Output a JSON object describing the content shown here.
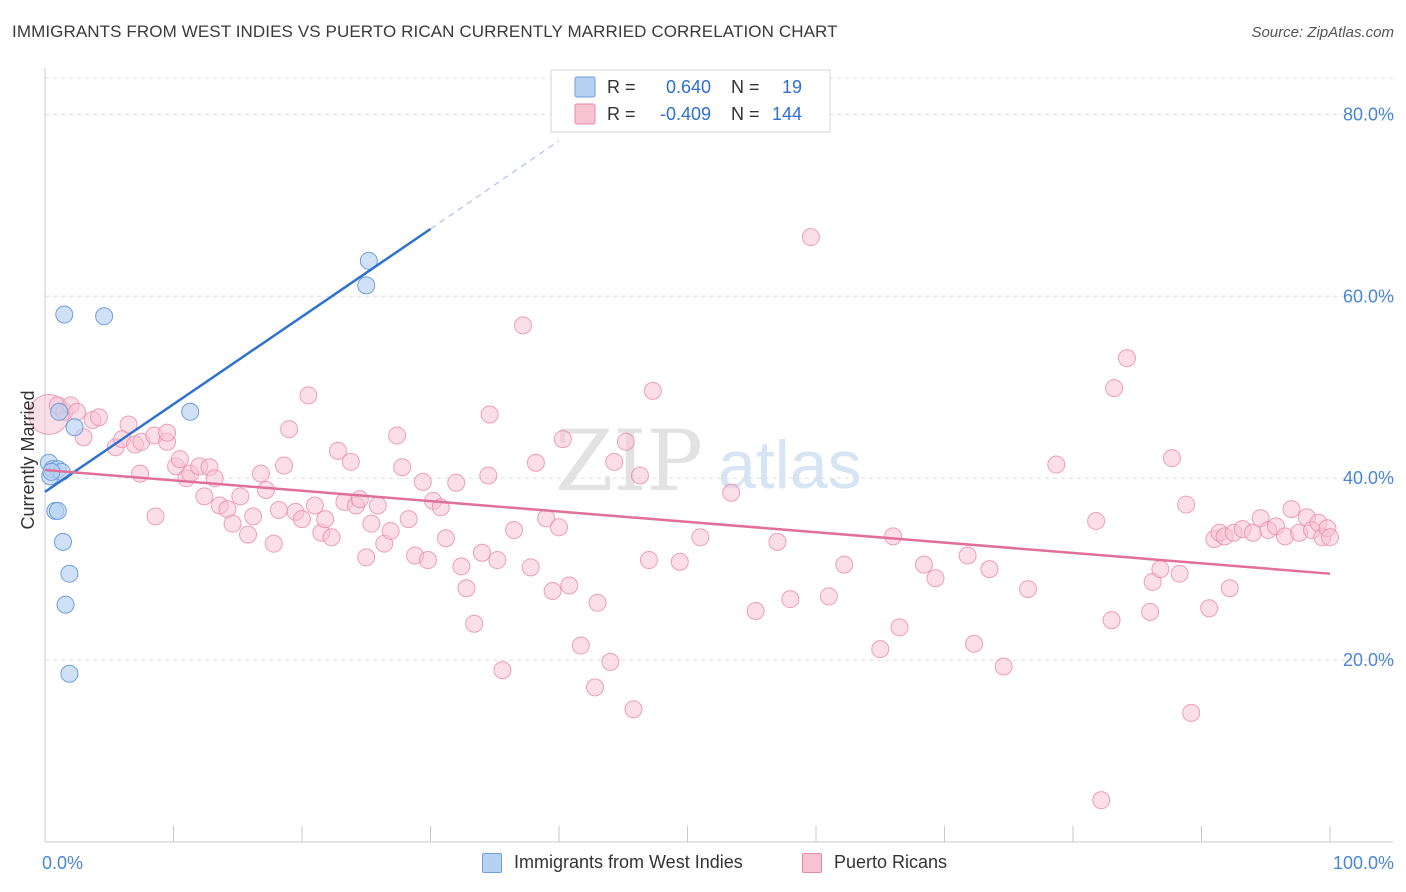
{
  "title": "IMMIGRANTS FROM WEST INDIES VS PUERTO RICAN CURRENTLY MARRIED CORRELATION CHART",
  "source": "Source: ZipAtlas.com",
  "watermark": {
    "zip": "ZIP",
    "atlas": "atlas"
  },
  "colors": {
    "blue_fill": "#b7d1f2",
    "blue_stroke": "#6f9fdc",
    "blue_line": "#2f72cf",
    "pink_fill": "#f7c3d3",
    "pink_stroke": "#e98aab",
    "pink_line": "#e0709a",
    "grid": "#dddddd",
    "tick_text": "#4a86d4"
  },
  "legend": {
    "rows": [
      {
        "r_label": "R =",
        "r_value": "0.640",
        "n_label": "N =",
        "n_value": "19"
      },
      {
        "r_label": "R =",
        "r_value": "-0.409",
        "n_label": "N =",
        "n_value": "144"
      }
    ]
  },
  "bottom_legend": [
    "Immigrants from West Indies",
    "Puerto Ricans"
  ],
  "chart_data": {
    "type": "scatter",
    "title": "IMMIGRANTS FROM WEST INDIES VS PUERTO RICAN CURRENTLY MARRIED CORRELATION CHART",
    "xlabel": "",
    "ylabel": "Currently Married",
    "xlim": [
      0,
      100
    ],
    "ylim": [
      0,
      84
    ],
    "x_tick_labels": [
      "0.0%",
      "100.0%"
    ],
    "y_ticks": [
      20,
      40,
      60,
      80
    ],
    "y_tick_labels": [
      "20.0%",
      "40.0%",
      "60.0%",
      "80.0%"
    ],
    "grid": true,
    "legend_position": "top-center",
    "series": [
      {
        "name": "Immigrants from West Indies",
        "color": "#b7d1f2",
        "r": 0.64,
        "n": 19,
        "trend": {
          "x0": 0,
          "y0": 38.5,
          "x1": 30,
          "y1": 67.4,
          "dash_to_x": 40,
          "dash_to_y": 77.1
        },
        "points": [
          {
            "x": 0.3,
            "y": 41.7
          },
          {
            "x": 0.4,
            "y": 40.2
          },
          {
            "x": 0.6,
            "y": 41.0
          },
          {
            "x": 0.8,
            "y": 36.4
          },
          {
            "x": 1.0,
            "y": 41.0
          },
          {
            "x": 1.0,
            "y": 36.4
          },
          {
            "x": 1.1,
            "y": 47.3
          },
          {
            "x": 1.3,
            "y": 40.7
          },
          {
            "x": 1.4,
            "y": 33.0
          },
          {
            "x": 1.5,
            "y": 58.0
          },
          {
            "x": 1.6,
            "y": 26.1
          },
          {
            "x": 1.9,
            "y": 29.5
          },
          {
            "x": 1.9,
            "y": 18.5
          },
          {
            "x": 2.3,
            "y": 45.6
          },
          {
            "x": 4.6,
            "y": 57.8
          },
          {
            "x": 11.3,
            "y": 47.3
          },
          {
            "x": 25.0,
            "y": 61.2
          },
          {
            "x": 25.2,
            "y": 63.9
          },
          {
            "x": 0.5,
            "y": 40.7
          }
        ]
      },
      {
        "name": "Puerto Ricans",
        "color": "#f7c3d3",
        "r": -0.409,
        "n": 144,
        "trend": {
          "x0": 0,
          "y0": 40.9,
          "x1": 100,
          "y1": 29.5
        },
        "points": [
          {
            "x": 0.3,
            "y": 47.0
          },
          {
            "x": 1.0,
            "y": 48.0
          },
          {
            "x": 1.5,
            "y": 47.3
          },
          {
            "x": 2.0,
            "y": 48.0
          },
          {
            "x": 2.5,
            "y": 47.3
          },
          {
            "x": 3.0,
            "y": 44.5
          },
          {
            "x": 3.7,
            "y": 46.4
          },
          {
            "x": 4.2,
            "y": 46.7
          },
          {
            "x": 5.5,
            "y": 43.4
          },
          {
            "x": 6.0,
            "y": 44.3
          },
          {
            "x": 6.5,
            "y": 45.9
          },
          {
            "x": 7.0,
            "y": 43.7
          },
          {
            "x": 7.5,
            "y": 44.0
          },
          {
            "x": 7.4,
            "y": 40.5
          },
          {
            "x": 8.6,
            "y": 35.8
          },
          {
            "x": 8.5,
            "y": 44.7
          },
          {
            "x": 9.5,
            "y": 44.0
          },
          {
            "x": 9.5,
            "y": 45.0
          },
          {
            "x": 10.2,
            "y": 41.3
          },
          {
            "x": 10.5,
            "y": 42.1
          },
          {
            "x": 11.0,
            "y": 40.0
          },
          {
            "x": 11.3,
            "y": 40.5
          },
          {
            "x": 12.0,
            "y": 41.3
          },
          {
            "x": 12.4,
            "y": 38.0
          },
          {
            "x": 12.8,
            "y": 41.2
          },
          {
            "x": 13.2,
            "y": 40.0
          },
          {
            "x": 13.6,
            "y": 37.0
          },
          {
            "x": 14.2,
            "y": 36.6
          },
          {
            "x": 14.6,
            "y": 35.0
          },
          {
            "x": 15.2,
            "y": 38.0
          },
          {
            "x": 15.8,
            "y": 33.8
          },
          {
            "x": 16.2,
            "y": 35.8
          },
          {
            "x": 16.8,
            "y": 40.5
          },
          {
            "x": 17.2,
            "y": 38.7
          },
          {
            "x": 17.8,
            "y": 32.8
          },
          {
            "x": 18.2,
            "y": 36.5
          },
          {
            "x": 18.6,
            "y": 41.4
          },
          {
            "x": 19.0,
            "y": 45.4
          },
          {
            "x": 19.5,
            "y": 36.3
          },
          {
            "x": 20.0,
            "y": 35.5
          },
          {
            "x": 20.5,
            "y": 49.1
          },
          {
            "x": 21.0,
            "y": 37.0
          },
          {
            "x": 21.5,
            "y": 34.0
          },
          {
            "x": 21.8,
            "y": 35.5
          },
          {
            "x": 22.3,
            "y": 33.5
          },
          {
            "x": 22.8,
            "y": 43.0
          },
          {
            "x": 23.3,
            "y": 37.4
          },
          {
            "x": 23.8,
            "y": 41.8
          },
          {
            "x": 24.2,
            "y": 37.0
          },
          {
            "x": 24.5,
            "y": 37.7
          },
          {
            "x": 25.0,
            "y": 31.3
          },
          {
            "x": 25.4,
            "y": 35.0
          },
          {
            "x": 25.9,
            "y": 37.0
          },
          {
            "x": 26.4,
            "y": 32.8
          },
          {
            "x": 26.9,
            "y": 34.2
          },
          {
            "x": 27.4,
            "y": 44.7
          },
          {
            "x": 27.8,
            "y": 41.2
          },
          {
            "x": 28.3,
            "y": 35.5
          },
          {
            "x": 28.8,
            "y": 31.5
          },
          {
            "x": 29.4,
            "y": 39.6
          },
          {
            "x": 29.8,
            "y": 31.0
          },
          {
            "x": 30.2,
            "y": 37.5
          },
          {
            "x": 30.8,
            "y": 36.8
          },
          {
            "x": 31.2,
            "y": 33.4
          },
          {
            "x": 32.0,
            "y": 39.5
          },
          {
            "x": 32.4,
            "y": 30.3
          },
          {
            "x": 32.8,
            "y": 27.9
          },
          {
            "x": 33.4,
            "y": 24.0
          },
          {
            "x": 34.0,
            "y": 31.8
          },
          {
            "x": 34.5,
            "y": 40.3
          },
          {
            "x": 34.6,
            "y": 47.0
          },
          {
            "x": 35.2,
            "y": 31.0
          },
          {
            "x": 35.6,
            "y": 18.9
          },
          {
            "x": 36.5,
            "y": 34.3
          },
          {
            "x": 37.2,
            "y": 56.8
          },
          {
            "x": 37.8,
            "y": 30.2
          },
          {
            "x": 38.2,
            "y": 41.7
          },
          {
            "x": 39.0,
            "y": 35.6
          },
          {
            "x": 39.5,
            "y": 27.6
          },
          {
            "x": 40.0,
            "y": 34.6
          },
          {
            "x": 40.3,
            "y": 44.3
          },
          {
            "x": 40.8,
            "y": 28.2
          },
          {
            "x": 41.7,
            "y": 21.6
          },
          {
            "x": 43.0,
            "y": 26.3
          },
          {
            "x": 42.8,
            "y": 17.0
          },
          {
            "x": 44.0,
            "y": 19.8
          },
          {
            "x": 44.3,
            "y": 41.8
          },
          {
            "x": 45.2,
            "y": 44.0
          },
          {
            "x": 46.3,
            "y": 40.3
          },
          {
            "x": 45.8,
            "y": 14.6
          },
          {
            "x": 47.3,
            "y": 49.6
          },
          {
            "x": 47.0,
            "y": 31.0
          },
          {
            "x": 49.4,
            "y": 30.8
          },
          {
            "x": 51.0,
            "y": 33.5
          },
          {
            "x": 53.4,
            "y": 38.4
          },
          {
            "x": 55.3,
            "y": 25.4
          },
          {
            "x": 57.0,
            "y": 33.0
          },
          {
            "x": 58.0,
            "y": 26.7
          },
          {
            "x": 59.6,
            "y": 66.5
          },
          {
            "x": 61.0,
            "y": 27.0
          },
          {
            "x": 62.2,
            "y": 30.5
          },
          {
            "x": 65.0,
            "y": 21.2
          },
          {
            "x": 66.0,
            "y": 33.6
          },
          {
            "x": 66.5,
            "y": 23.6
          },
          {
            "x": 68.4,
            "y": 30.5
          },
          {
            "x": 69.3,
            "y": 29.0
          },
          {
            "x": 71.8,
            "y": 31.5
          },
          {
            "x": 72.3,
            "y": 21.8
          },
          {
            "x": 73.5,
            "y": 30.0
          },
          {
            "x": 74.6,
            "y": 19.3
          },
          {
            "x": 76.5,
            "y": 27.8
          },
          {
            "x": 78.7,
            "y": 41.5
          },
          {
            "x": 81.8,
            "y": 35.3
          },
          {
            "x": 82.2,
            "y": 4.6
          },
          {
            "x": 83.0,
            "y": 24.4
          },
          {
            "x": 83.2,
            "y": 49.9
          },
          {
            "x": 84.2,
            "y": 53.2
          },
          {
            "x": 86.0,
            "y": 25.3
          },
          {
            "x": 86.2,
            "y": 28.6
          },
          {
            "x": 86.8,
            "y": 30.0
          },
          {
            "x": 87.7,
            "y": 42.2
          },
          {
            "x": 88.3,
            "y": 29.5
          },
          {
            "x": 88.8,
            "y": 37.1
          },
          {
            "x": 89.2,
            "y": 14.2
          },
          {
            "x": 90.6,
            "y": 25.7
          },
          {
            "x": 91.0,
            "y": 33.3
          },
          {
            "x": 91.4,
            "y": 34.0
          },
          {
            "x": 91.8,
            "y": 33.6
          },
          {
            "x": 92.2,
            "y": 27.9
          },
          {
            "x": 92.5,
            "y": 34.0
          },
          {
            "x": 93.2,
            "y": 34.4
          },
          {
            "x": 94.0,
            "y": 34.0
          },
          {
            "x": 94.6,
            "y": 35.6
          },
          {
            "x": 95.2,
            "y": 34.3
          },
          {
            "x": 95.8,
            "y": 34.7
          },
          {
            "x": 96.5,
            "y": 33.6
          },
          {
            "x": 97.0,
            "y": 36.6
          },
          {
            "x": 97.6,
            "y": 34.0
          },
          {
            "x": 98.2,
            "y": 35.7
          },
          {
            "x": 98.6,
            "y": 34.3
          },
          {
            "x": 99.1,
            "y": 35.1
          },
          {
            "x": 99.4,
            "y": 33.5
          },
          {
            "x": 99.8,
            "y": 34.5
          },
          {
            "x": 100.0,
            "y": 33.5
          }
        ]
      }
    ]
  }
}
